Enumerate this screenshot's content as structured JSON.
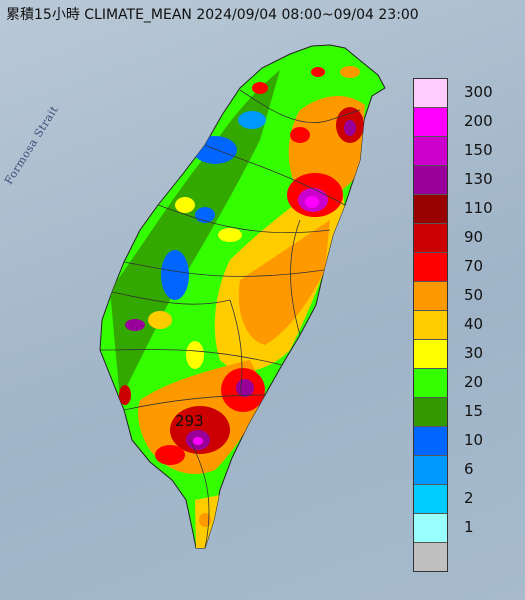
{
  "title": "累積15小時 CLIMATE_MEAN 2024/09/04 08:00~09/04 23:00",
  "strait_label": "Formosa Strait",
  "max_value_label": "293",
  "legend": {
    "levels": [
      {
        "label": "300",
        "color": "#ffccff"
      },
      {
        "label": "200",
        "color": "#ff00ff"
      },
      {
        "label": "150",
        "color": "#cc00cc"
      },
      {
        "label": "130",
        "color": "#990099"
      },
      {
        "label": "110",
        "color": "#990000"
      },
      {
        "label": "90",
        "color": "#cc0000"
      },
      {
        "label": "70",
        "color": "#ff0000"
      },
      {
        "label": "50",
        "color": "#ff9900"
      },
      {
        "label": "40",
        "color": "#ffcc00"
      },
      {
        "label": "30",
        "color": "#ffff00"
      },
      {
        "label": "20",
        "color": "#33ff00"
      },
      {
        "label": "15",
        "color": "#339900"
      },
      {
        "label": "10",
        "color": "#0066ff"
      },
      {
        "label": "6",
        "color": "#0099ff"
      },
      {
        "label": "2",
        "color": "#00ccff"
      },
      {
        "label": "1",
        "color": "#99ffff"
      },
      {
        "label": "",
        "color": "#c0c0c0"
      }
    ]
  }
}
